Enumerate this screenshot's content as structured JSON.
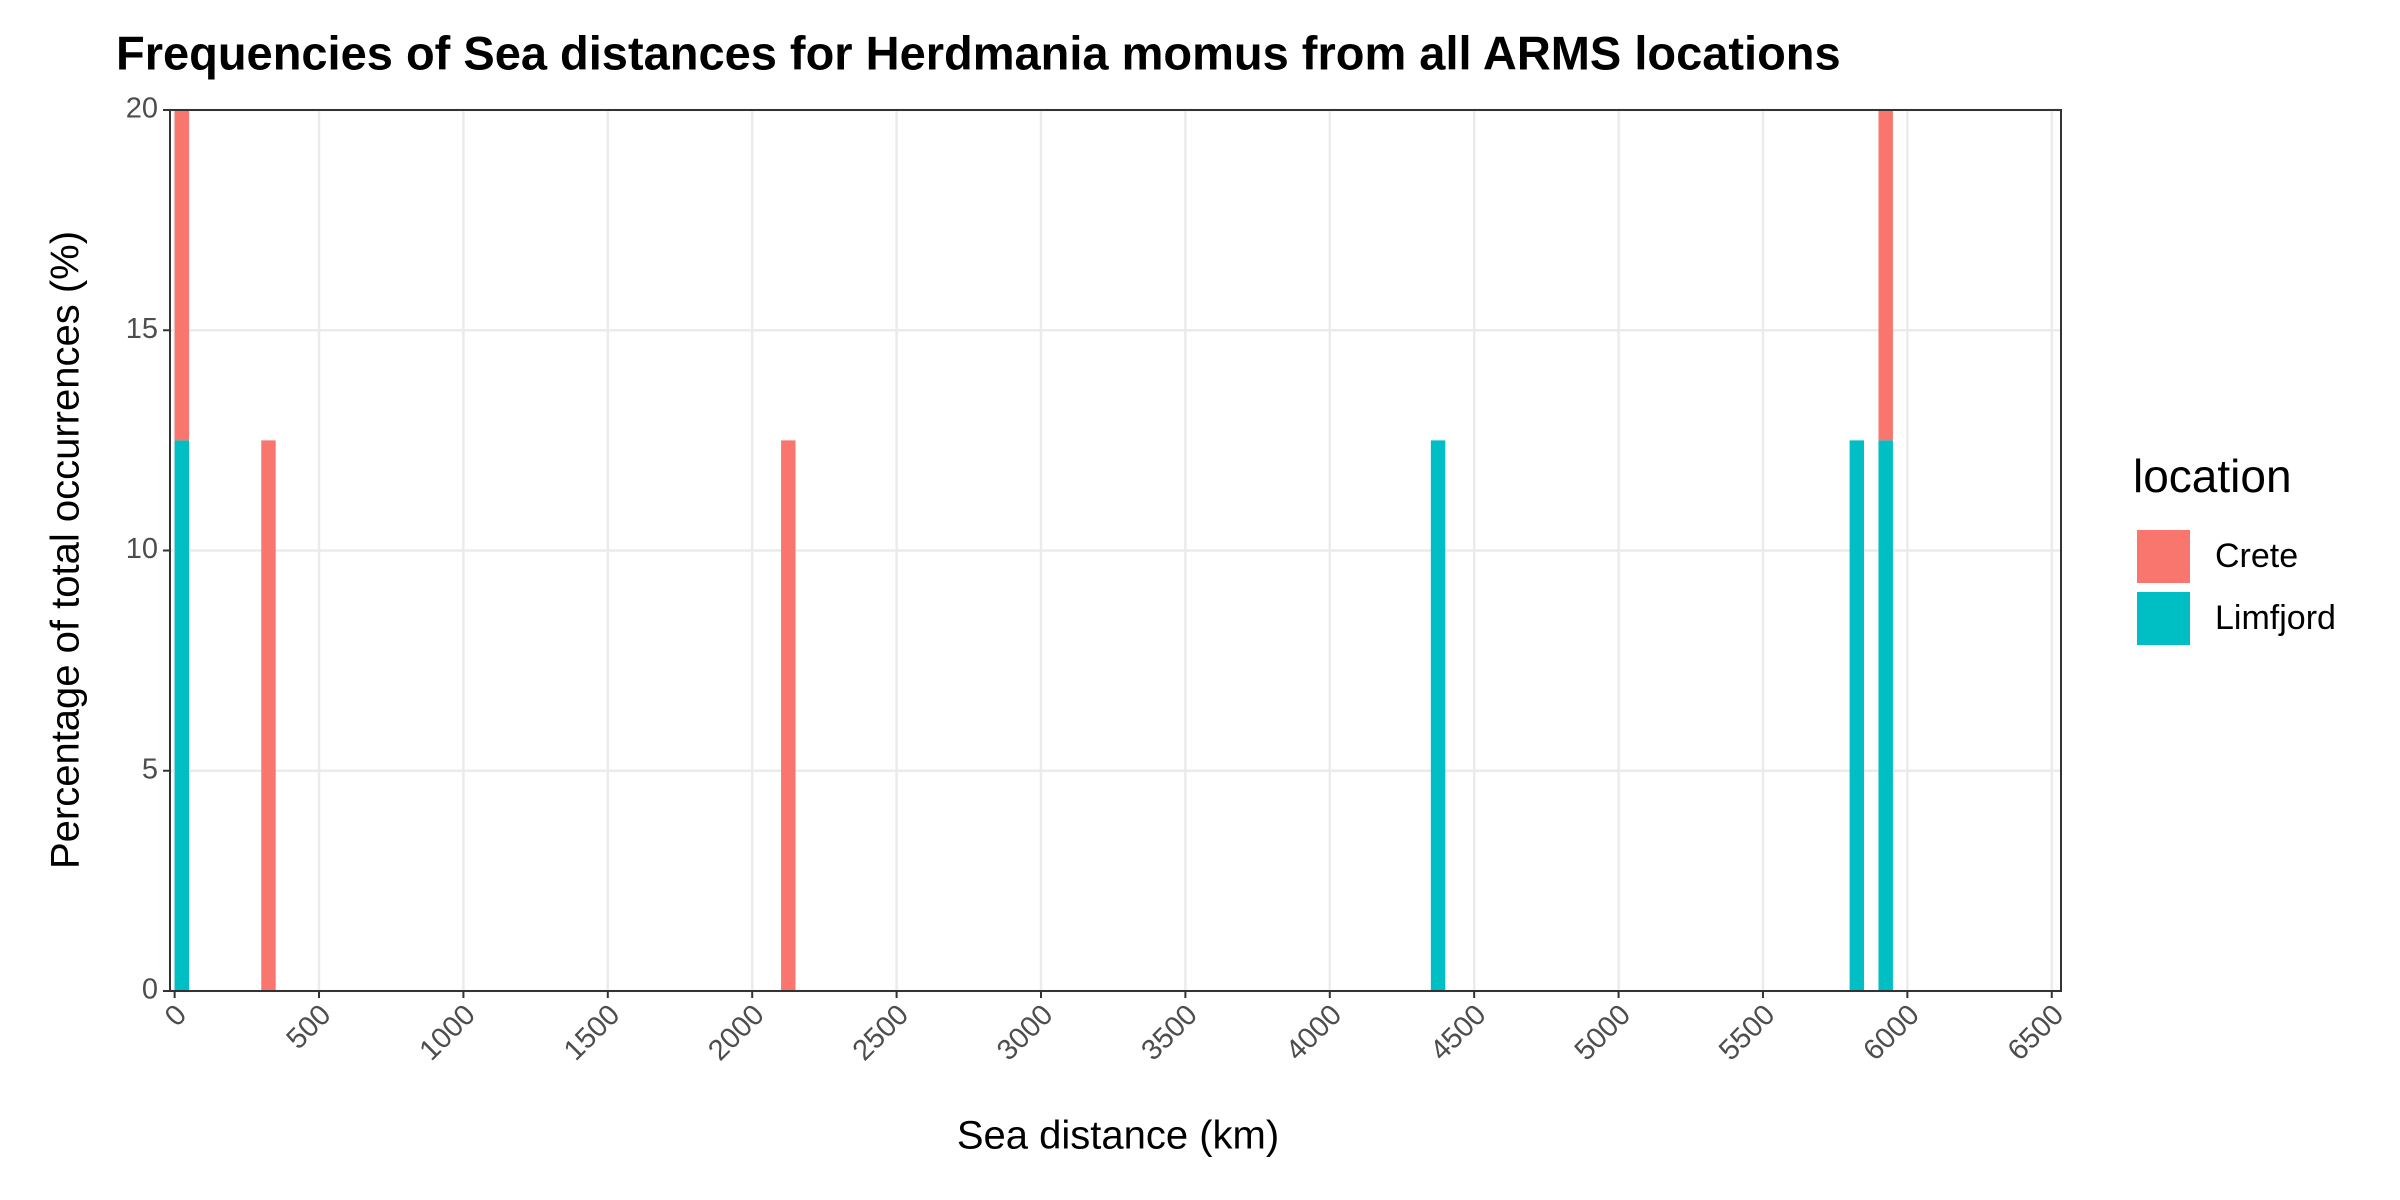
{
  "chart_data": {
    "type": "histogram",
    "title": "Frequencies of Sea distances for Herdmania momus from all ARMS locations",
    "x_label": "Sea distance (km)",
    "y_label": "Percentage of total occurrences (%)",
    "x": [
      0,
      300,
      2100,
      4350,
      5800,
      5900
    ],
    "binwidth": 50,
    "series": [
      {
        "name": "Limfjord",
        "color": "#00BFC4",
        "values": [
          12.5,
          0,
          0,
          12.5,
          12.5,
          12.5
        ]
      },
      {
        "name": "Crete",
        "color": "#F8766D",
        "values": [
          7.5,
          12.5,
          12.5,
          0,
          0,
          7.5
        ]
      }
    ],
    "stacked": true,
    "legend_title": "location",
    "legend_order": [
      "Crete",
      "Limfjord"
    ],
    "legend_position": "right",
    "xlim": [
      -16,
      6532
    ],
    "ylim": [
      0,
      20
    ],
    "xticks": [
      0,
      500,
      1000,
      1500,
      2000,
      2500,
      3000,
      3500,
      4000,
      4500,
      5000,
      5500,
      6000,
      6500
    ],
    "yticks": [
      0,
      5,
      10,
      15,
      20
    ],
    "grid": true
  }
}
